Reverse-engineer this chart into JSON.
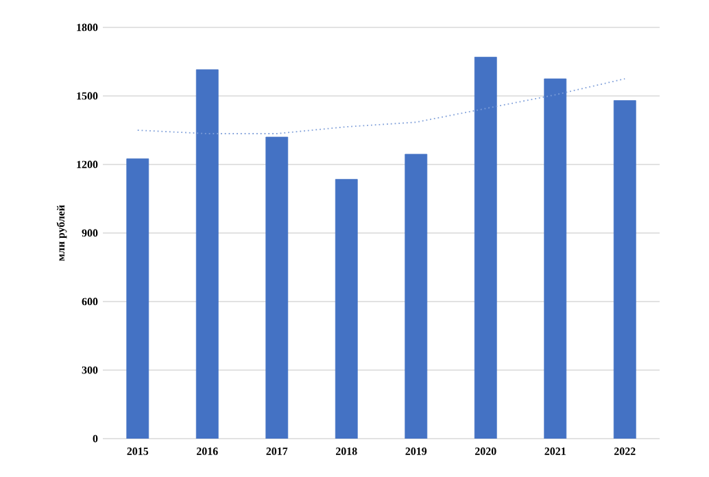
{
  "chart_data": {
    "type": "bar",
    "ylabel": "млн рублей",
    "categories": [
      "2015",
      "2016",
      "2017",
      "2018",
      "2019",
      "2020",
      "2021",
      "2022"
    ],
    "series": [
      {
        "color": "#4472c4",
        "values": [
          1225,
          1615,
          1320,
          1135,
          1245,
          1670,
          1575,
          1480
        ]
      },
      {
        "type": "line",
        "color": "#7f9fd9",
        "line_style": "dotted",
        "marker": "none",
        "values": [
          1350,
          1335,
          1335,
          1365,
          1385,
          1445,
          1505,
          1575
        ]
      }
    ],
    "ylim": [
      0,
      1800
    ],
    "yticks": [
      0,
      300,
      600,
      900,
      1200,
      1500,
      1800
    ],
    "grid": "y"
  }
}
